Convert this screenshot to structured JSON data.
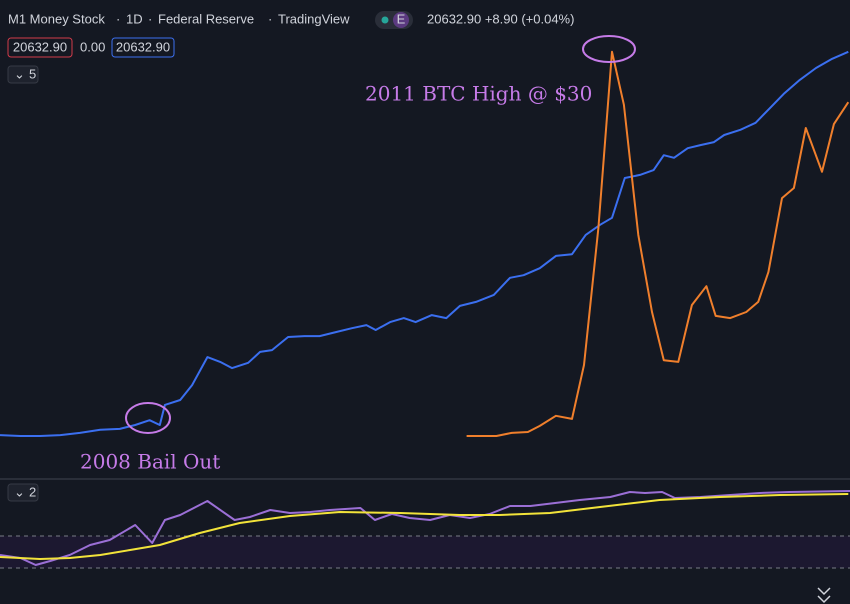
{
  "header": {
    "symbol": "M1 Money Stock",
    "interval": "1D",
    "source": "Federal Reserve",
    "platform": "TradingView",
    "badge": "E",
    "quote": "20632.90 +8.90 (+0.04%)",
    "price_left": "20632.90",
    "change": "0.00",
    "price_right": "20632.90",
    "main_pane_badge": "5",
    "lower_pane_badge": "2"
  },
  "chart_data": [
    {
      "type": "line",
      "annotations": [
        "2011 BTC High @ $30",
        "2008 Bail Out"
      ],
      "xlim": [
        0,
        100
      ],
      "ylim": [
        0,
        100
      ],
      "series": [
        {
          "color": "#3b6ff0",
          "x": [
            0,
            2.4,
            4.7,
            7.1,
            9.4,
            11.8,
            14.1,
            15.9,
            17.6,
            18.8,
            19.4,
            21.2,
            22.6,
            24.4,
            25.9,
            27.3,
            29.2,
            30.6,
            32,
            33.9,
            35.8,
            37.6,
            39.5,
            41.4,
            43.1,
            44.2,
            45.9,
            47.5,
            48.9,
            50.8,
            52.5,
            54.1,
            56,
            58.1,
            60,
            61.6,
            63.5,
            65.4,
            67.3,
            68.9,
            70.6,
            72,
            73.5,
            75.3,
            76.9,
            78.1,
            79.3,
            80.9,
            82.4,
            84,
            85.2,
            87.1,
            88.9,
            90.6,
            92.2,
            94.1,
            96,
            97.9,
            99.8
          ],
          "values": [
            9.8,
            9.6,
            9.6,
            9.8,
            10.3,
            11,
            11.2,
            12.1,
            13.2,
            12.1,
            16.7,
            17.8,
            21.2,
            27.6,
            26.5,
            25.1,
            26.3,
            28.8,
            29.2,
            32.2,
            32.4,
            32.4,
            33.3,
            34.2,
            34.9,
            33.8,
            35.6,
            36.5,
            35.6,
            37.2,
            36.5,
            39.3,
            40.2,
            41.8,
            45.7,
            46.3,
            47.9,
            50.7,
            51.1,
            55.5,
            57.8,
            59.4,
            68.5,
            69.2,
            70.3,
            73.7,
            73.1,
            75.3,
            76,
            76.7,
            78.3,
            79.5,
            81.1,
            84.5,
            87.7,
            90.9,
            93.6,
            95.7,
            97.3
          ]
        },
        {
          "color": "#f07f2c",
          "x": [
            54.9,
            58.4,
            60.2,
            62.1,
            63.5,
            65.4,
            67.3,
            68.7,
            70.4,
            72,
            73.4,
            75.1,
            76.7,
            78.1,
            79.8,
            81.4,
            83.1,
            84.2,
            85.9,
            87.8,
            89.2,
            90.4,
            92,
            93.4,
            94.8,
            96.7,
            98.1,
            99.8
          ],
          "values": [
            9.6,
            9.6,
            10.3,
            10.5,
            11.9,
            14.2,
            13.5,
            25.8,
            57.1,
            97.3,
            85.2,
            55.5,
            37.9,
            26.9,
            26.5,
            39.5,
            43.8,
            37,
            36.5,
            37.9,
            40.2,
            47,
            63.9,
            66.2,
            79.9,
            69.9,
            80.8,
            85.8
          ]
        }
      ]
    },
    {
      "type": "line",
      "xlim": [
        0,
        100
      ],
      "ylim": [
        0,
        100
      ],
      "levels": [
        56.7,
        30
      ],
      "series": [
        {
          "color": "#9b6fd6",
          "x": [
            0,
            2.4,
            4.2,
            5.9,
            8.2,
            10.6,
            12.9,
            15.9,
            17.9,
            19.4,
            21.2,
            24.4,
            27.6,
            29.4,
            31.8,
            34.1,
            36.5,
            38.8,
            42.4,
            44.1,
            46.1,
            48.2,
            50.6,
            52.9,
            55.3,
            57.6,
            60,
            62.4,
            65.3,
            68.2,
            71.8,
            74.1,
            75.9,
            77.9,
            79.4,
            82.4,
            85.9,
            89.4,
            92.9,
            100
          ],
          "values": [
            40.8,
            38.3,
            32.5,
            35.8,
            40.8,
            49.2,
            53.3,
            65.8,
            50.8,
            70,
            74.2,
            85.8,
            70,
            72.5,
            78.3,
            75.8,
            76.7,
            78.3,
            80,
            70,
            75,
            71.7,
            70,
            74.2,
            71.7,
            75,
            81.7,
            81.7,
            84.2,
            86.7,
            89.2,
            93.3,
            92.5,
            93.3,
            88.3,
            89.2,
            90.8,
            92.5,
            93.3,
            94.2
          ]
        },
        {
          "color": "#f2e33a",
          "x": [
            0,
            4.7,
            8.2,
            11.8,
            15.3,
            18.8,
            23.5,
            28.2,
            34.1,
            40,
            47.1,
            54.1,
            58.8,
            64.7,
            70.6,
            77.6,
            84.7,
            91.8,
            99.8
          ],
          "values": [
            39.2,
            37.5,
            38.3,
            40.8,
            45,
            49.2,
            59.2,
            67.5,
            73.3,
            76.7,
            75.8,
            74.2,
            74.2,
            75.8,
            80.8,
            86.7,
            89.2,
            90.8,
            91.7
          ]
        }
      ]
    }
  ]
}
